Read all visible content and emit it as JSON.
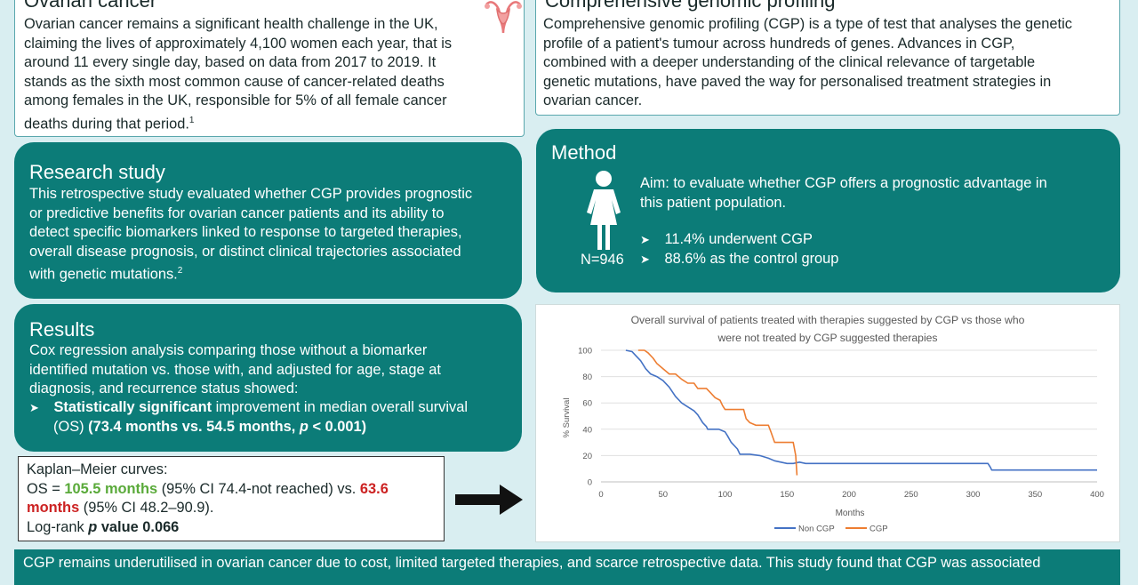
{
  "ovarian": {
    "title": "Ovarian cancer",
    "lines": [
      "Ovarian cancer remains a significant health challenge in the UK,",
      "claiming the lives of approximately 4,100 women each year, that is",
      "around 11 every single day, based on data from 2017 to 2019. It",
      "stands as the sixth most common cause of cancer-related deaths",
      "among females in the UK, responsible for 5% of all female cancer",
      "deaths during that period."
    ],
    "ref": "1"
  },
  "cgp": {
    "title": "Comprehensive genomic profiling",
    "lines": [
      "Comprehensive genomic profiling (CGP) is a type of test that analyses the genetic",
      "profile of a patient's tumour across hundreds of genes. Advances in CGP,",
      "combined with a deeper understanding of the clinical relevance of targetable",
      "genetic mutations, have paved the way for personalised treatment strategies in",
      "ovarian cancer."
    ]
  },
  "research": {
    "title": "Research study",
    "lines": [
      "This retrospective study evaluated whether CGP provides prognostic",
      "or predictive benefits for ovarian cancer patients and its ability to",
      "detect specific biomarkers linked to response to targeted therapies,",
      "overall disease prognosis, or distinct clinical trajectories associated",
      "with genetic mutations."
    ],
    "ref": "2"
  },
  "method": {
    "title": "Method",
    "n_label": "N=946",
    "aim_line1": "Aim: to evaluate whether CGP offers a prognostic advantage in",
    "aim_line2": "this patient population.",
    "bullet1": "11.4% underwent CGP",
    "bullet2": "88.6% as the control group"
  },
  "results": {
    "title": "Results",
    "lines": [
      "Cox regression analysis comparing those without a biomarker",
      "identified mutation vs. those with, and adjusted for age, stage at",
      "diagnosis, and recurrence status showed:"
    ],
    "bullet_bold": "Statistically significant",
    "bullet_rest": " improvement in median overall survival",
    "bullet_line2_pre": "(OS) ",
    "bullet_line2_bold_a": "(73.4 months vs. 54.5 months, ",
    "bullet_line2_p": "p",
    "bullet_line2_bold_b": " < 0.001)"
  },
  "km": {
    "line1": "Kaplan–Meier curves:",
    "os_prefix": "OS = ",
    "os_value1": "105.5 months",
    "ci1": " (95% CI 74.4-not reached) vs. ",
    "os_value2a": "63.6",
    "os_value2b": "months",
    "ci2": " (95% CI 48.2–90.9).",
    "logrank_pre": "Log-rank ",
    "logrank_p": "p",
    "logrank_rest": " value 0.066"
  },
  "footer": {
    "text": "CGP remains underutilised in ovarian cancer due to cost, limited targeted therapies, and scarce retrospective data. This study found that CGP was associated"
  },
  "colors": {
    "teal": "#0c7c78",
    "background": "#d9eef1",
    "non_cgp": "#4472c4",
    "cgp": "#ed7d31",
    "green_value": "#5aaa3a",
    "red_value": "#cc2222"
  },
  "chart_data": {
    "type": "line",
    "title_line1": "Overall survival of patients treated with therapies suggested by CGP vs those who",
    "title_line2": "were not treated by CGP suggested therapies",
    "xlabel": "Months",
    "ylabel": "% Survival",
    "xlim": [
      0,
      400
    ],
    "ylim": [
      0,
      100
    ],
    "xticks": [
      0,
      50,
      100,
      150,
      200,
      250,
      300,
      350,
      400
    ],
    "yticks": [
      0,
      20,
      40,
      60,
      80,
      100
    ],
    "grid": "horizontal",
    "legend_position": "bottom",
    "step": true,
    "series": [
      {
        "name": "Non CGP",
        "color": "#4472c4",
        "points": [
          [
            20,
            100
          ],
          [
            25,
            99
          ],
          [
            28,
            96
          ],
          [
            32,
            92
          ],
          [
            36,
            86
          ],
          [
            40,
            82
          ],
          [
            45,
            80
          ],
          [
            50,
            77
          ],
          [
            55,
            72
          ],
          [
            60,
            65
          ],
          [
            65,
            60
          ],
          [
            70,
            57
          ],
          [
            75,
            54
          ],
          [
            78,
            51
          ],
          [
            80,
            48
          ],
          [
            82,
            45
          ],
          [
            85,
            42
          ],
          [
            86,
            40
          ],
          [
            95,
            40
          ],
          [
            100,
            38
          ],
          [
            102,
            35
          ],
          [
            105,
            30
          ],
          [
            110,
            25
          ],
          [
            112,
            21
          ],
          [
            120,
            21
          ],
          [
            128,
            20
          ],
          [
            135,
            18
          ],
          [
            140,
            16
          ],
          [
            145,
            15
          ],
          [
            150,
            14
          ],
          [
            155,
            14
          ],
          [
            160,
            15
          ],
          [
            165,
            14
          ],
          [
            200,
            14
          ],
          [
            250,
            14
          ],
          [
            300,
            14
          ],
          [
            312,
            14
          ],
          [
            314,
            11
          ],
          [
            315,
            9
          ],
          [
            350,
            9
          ],
          [
            400,
            9
          ]
        ]
      },
      {
        "name": "CGP",
        "color": "#ed7d31",
        "points": [
          [
            30,
            100
          ],
          [
            35,
            100
          ],
          [
            38,
            98
          ],
          [
            42,
            94
          ],
          [
            45,
            90
          ],
          [
            50,
            86
          ],
          [
            55,
            82
          ],
          [
            60,
            82
          ],
          [
            65,
            78
          ],
          [
            70,
            75
          ],
          [
            75,
            75
          ],
          [
            78,
            71
          ],
          [
            85,
            71
          ],
          [
            88,
            68
          ],
          [
            92,
            64
          ],
          [
            96,
            62
          ],
          [
            98,
            58
          ],
          [
            100,
            55
          ],
          [
            115,
            55
          ],
          [
            117,
            48
          ],
          [
            120,
            45
          ],
          [
            125,
            43
          ],
          [
            135,
            43
          ],
          [
            137,
            38
          ],
          [
            140,
            30
          ],
          [
            150,
            30
          ],
          [
            155,
            30
          ],
          [
            157,
            20
          ],
          [
            158,
            5
          ]
        ]
      }
    ]
  }
}
